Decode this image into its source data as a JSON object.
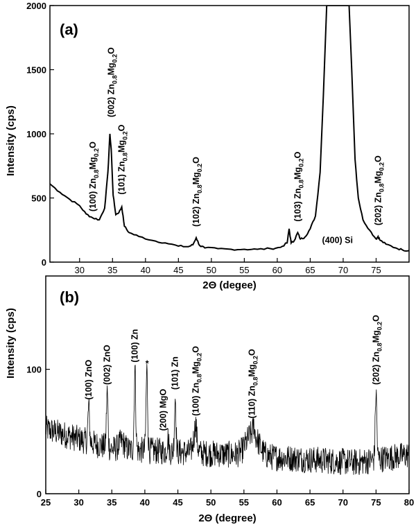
{
  "chart_data": [
    {
      "type": "line",
      "panel_label": "(a)",
      "xlabel": "2Θ (degee)",
      "ylabel": "Intensity (cps)",
      "xlim": [
        25.5,
        80
      ],
      "ylim": [
        0,
        2000
      ],
      "xticks": [
        "30",
        "35",
        "40",
        "45",
        "50",
        "55",
        "60",
        "65",
        "70",
        "75"
      ],
      "yticks": [
        "0",
        "500",
        "1000",
        "1500",
        "2000"
      ],
      "grid": false,
      "series": [
        {
          "x": [
            25.5,
            27,
            28.5,
            30,
            31,
            32,
            33,
            33.8,
            34.3,
            34.6,
            34.8,
            35.1,
            35.5,
            36,
            36.4,
            36.8,
            37.5,
            39,
            41,
            43,
            45,
            46.5,
            47.2,
            47.7,
            48.2,
            49,
            51,
            53,
            55,
            57,
            59,
            60.5,
            61.5,
            61.8,
            62.1,
            62.6,
            63.1,
            63.5,
            64.2,
            65,
            65.8,
            66.5,
            67,
            67.5,
            68,
            70.5,
            70.9,
            71.3,
            71.8,
            72.3,
            73,
            74,
            75,
            75.3,
            75.6,
            76.5,
            78,
            79,
            80
          ],
          "y": [
            610,
            545,
            490,
            440,
            375,
            345,
            330,
            420,
            700,
            1000,
            880,
            520,
            370,
            390,
            430,
            280,
            230,
            200,
            170,
            150,
            125,
            120,
            135,
            190,
            130,
            110,
            105,
            100,
            100,
            100,
            105,
            115,
            150,
            260,
            150,
            170,
            230,
            180,
            195,
            260,
            360,
            700,
            1300,
            2000,
            2000,
            2000,
            2000,
            1500,
            800,
            500,
            330,
            250,
            180,
            200,
            170,
            140,
            110,
            95,
            90
          ]
        }
      ],
      "annotations": [
        {
          "x": 32,
          "y": 330,
          "miller": "(100)"
        },
        {
          "x": 34.8,
          "y": 1000,
          "miller": "(002)"
        },
        {
          "x": 36.4,
          "y": 430,
          "miller": "(101)"
        },
        {
          "x": 47.7,
          "y": 190,
          "miller": "(102)"
        },
        {
          "x": 63.1,
          "y": 230,
          "miller": "(103)"
        },
        {
          "x": 75.3,
          "y": 200,
          "miller": "(202)"
        }
      ],
      "phase_label": {
        "base": "Zn",
        "sub1": "0.8",
        "mid": "Mg",
        "sub2": "0.2",
        "end": "O"
      },
      "si_label": "(400) Si"
    },
    {
      "type": "line",
      "panel_label": "(b)",
      "xlabel": "2Θ (degree)",
      "ylabel": "Intensity (cps)",
      "xlim": [
        25,
        80
      ],
      "ylim": [
        0,
        175
      ],
      "xticks": [
        "25",
        "30",
        "35",
        "40",
        "45",
        "50",
        "55",
        "60",
        "65",
        "70",
        "75",
        "80"
      ],
      "yticks": [
        "0",
        "100"
      ],
      "grid": false,
      "peaks": [
        {
          "x": 31.5,
          "y": 70
        },
        {
          "x": 34.3,
          "y": 82
        },
        {
          "x": 38.5,
          "y": 100
        },
        {
          "x": 40.3,
          "y": 100
        },
        {
          "x": 43.5,
          "y": 45
        },
        {
          "x": 44.6,
          "y": 78
        },
        {
          "x": 47.7,
          "y": 57
        },
        {
          "x": 56.5,
          "y": 55
        },
        {
          "x": 75.0,
          "y": 82
        }
      ],
      "annotations": [
        {
          "x": 31.5,
          "y": 70,
          "text": "(100) ZnO"
        },
        {
          "x": 34.3,
          "y": 82,
          "text": "(002) ZnO"
        },
        {
          "x": 38.5,
          "y": 100,
          "text": "(100) Zn"
        },
        {
          "x": 40.3,
          "y": 100,
          "text": "*"
        },
        {
          "x": 42.8,
          "y": 45,
          "text": "(200) MgO"
        },
        {
          "x": 44.6,
          "y": 78,
          "text": "(101) Zn"
        },
        {
          "x": 47.7,
          "y": 57,
          "miller": "(100)"
        },
        {
          "x": 56.2,
          "y": 55,
          "miller": "(110)"
        },
        {
          "x": 75.0,
          "y": 82,
          "miller": "(202)"
        }
      ]
    }
  ]
}
